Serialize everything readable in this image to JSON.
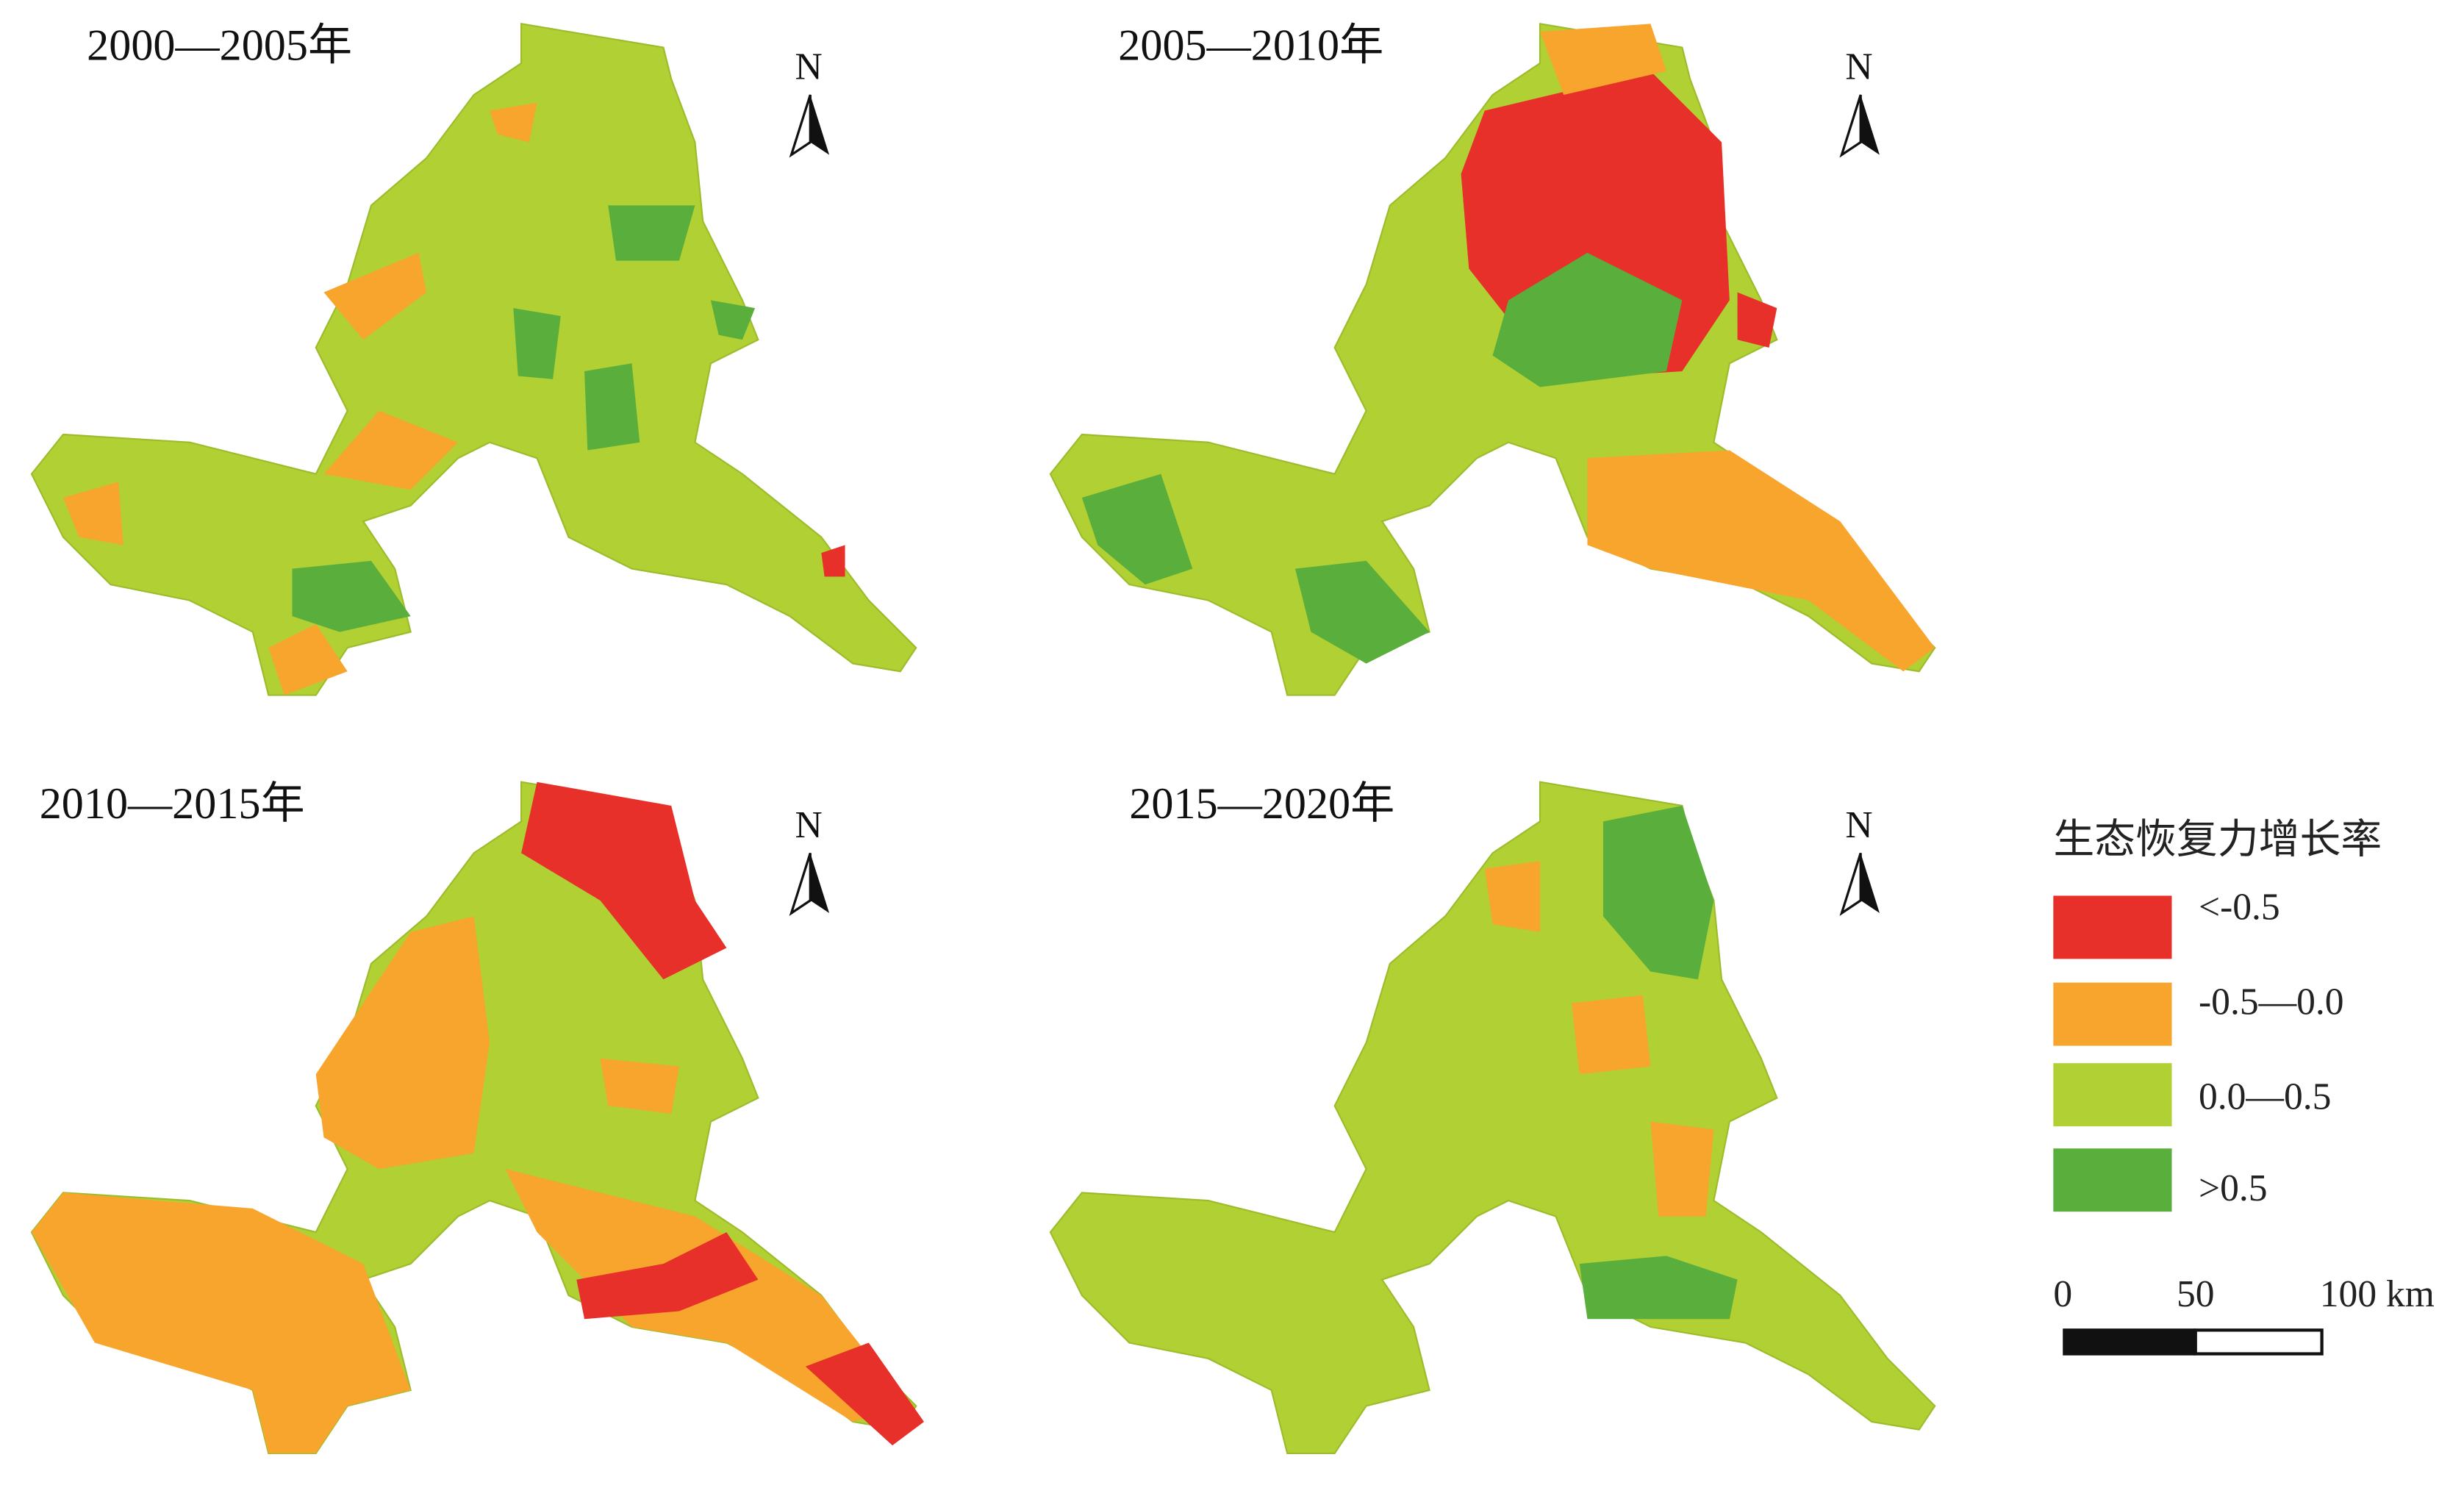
{
  "panels": [
    {
      "title": "2000—2005年",
      "north": "N"
    },
    {
      "title": "2005—2010年",
      "north": "N"
    },
    {
      "title": "2010—2015年",
      "north": "N"
    },
    {
      "title": "2015—2020年",
      "north": "N"
    }
  ],
  "legend": {
    "title": "生态恢复力增长率",
    "items": [
      "<-0.5",
      "-0.5—0.0",
      "0.0—0.5",
      ">0.5"
    ]
  },
  "scale_bar": {
    "labels": [
      "0",
      "50",
      "100 km"
    ]
  }
}
